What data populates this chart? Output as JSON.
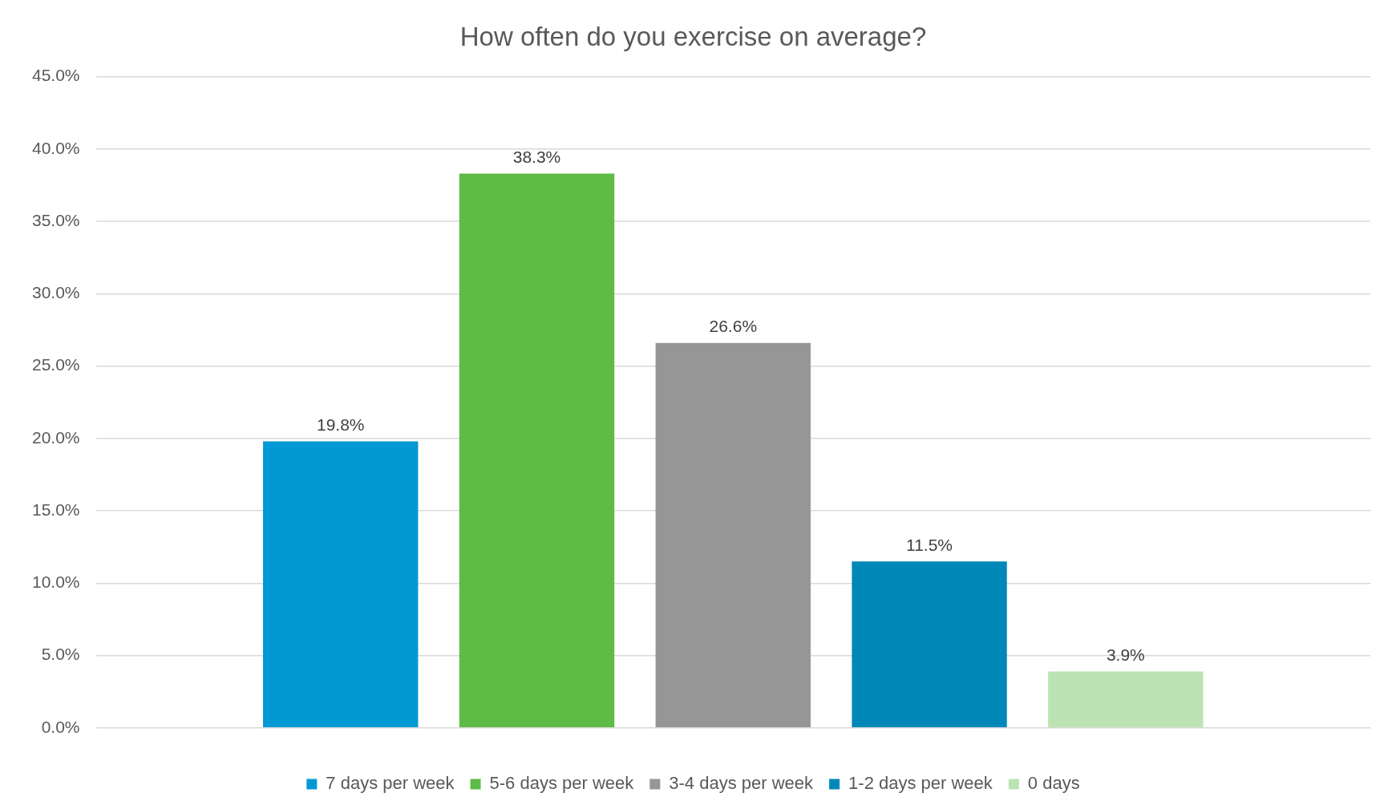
{
  "chart_data": {
    "type": "bar",
    "title": "How often do you exercise on average?",
    "categories": [
      null
    ],
    "series": [
      {
        "name": "7 days per week",
        "color": "#0099d4",
        "values": [
          19.8
        ],
        "value_labels": [
          "19.8%"
        ]
      },
      {
        "name": "5-6 days per week",
        "color": "#5dbb46",
        "values": [
          38.3
        ],
        "value_labels": [
          "38.3%"
        ]
      },
      {
        "name": "3-4 days per week",
        "color": "#969696",
        "values": [
          26.6
        ],
        "value_labels": [
          "26.6%"
        ]
      },
      {
        "name": "1-2 days per week",
        "color": "#0088b8",
        "values": [
          11.5
        ],
        "value_labels": [
          "11.5%"
        ]
      },
      {
        "name": "0 days",
        "color": "#bce3b2",
        "values": [
          3.9
        ],
        "value_labels": [
          "3.9%"
        ]
      }
    ],
    "ylim": [
      0,
      45
    ],
    "yticks": [
      {
        "value": 0,
        "label": "0.0%"
      },
      {
        "value": 5,
        "label": "5.0%"
      },
      {
        "value": 10,
        "label": "10.0%"
      },
      {
        "value": 15,
        "label": "15.0%"
      },
      {
        "value": 20,
        "label": "20.0%"
      },
      {
        "value": 25,
        "label": "25.0%"
      },
      {
        "value": 30,
        "label": "30.0%"
      },
      {
        "value": 35,
        "label": "35.0%"
      },
      {
        "value": 40,
        "label": "40.0%"
      },
      {
        "value": 45,
        "label": "45.0%"
      }
    ],
    "grid": "y",
    "legend": "bottom"
  }
}
